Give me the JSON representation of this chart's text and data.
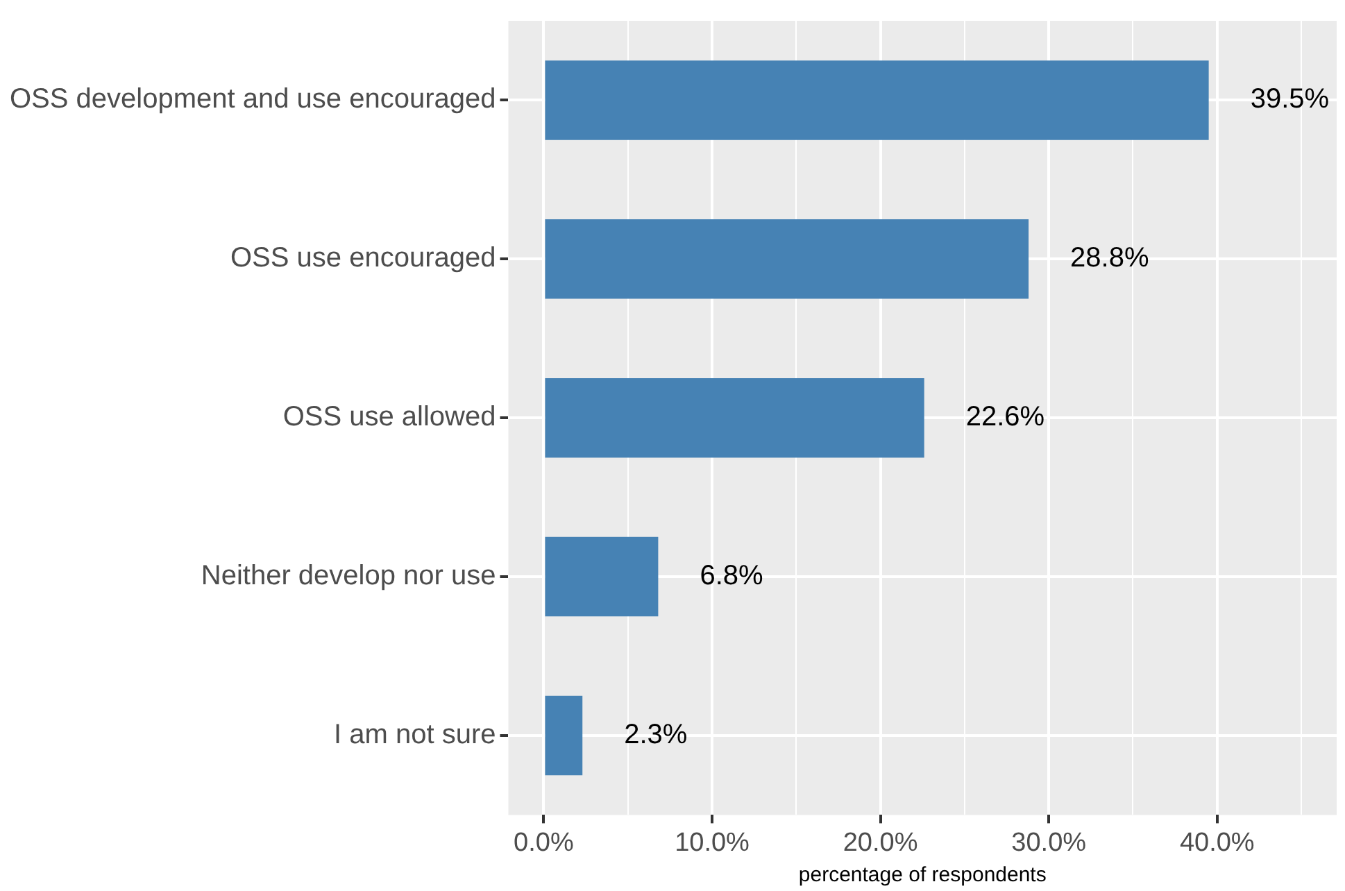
{
  "chart_data": {
    "type": "bar",
    "orientation": "horizontal",
    "xlabel": "percentage of respondents",
    "categories": [
      "OSS development and use encouraged",
      "OSS use encouraged",
      "OSS use allowed",
      "Neither develop nor use",
      "I am not sure"
    ],
    "values": [
      39.5,
      28.8,
      22.6,
      6.8,
      2.3
    ],
    "value_labels": [
      "39.5%",
      "28.8%",
      "22.6%",
      "6.8%",
      "2.3%"
    ],
    "color": "#4682b4",
    "xlim": [
      -2.1,
      47.1
    ],
    "xticks": [
      {
        "value": 0,
        "label": "0.0%"
      },
      {
        "value": 5,
        "label": null
      },
      {
        "value": 10,
        "label": "10.0%"
      },
      {
        "value": 15,
        "label": null
      },
      {
        "value": 20,
        "label": "20.0%"
      },
      {
        "value": 25,
        "label": null
      },
      {
        "value": 30,
        "label": "30.0%"
      },
      {
        "value": 35,
        "label": null
      },
      {
        "value": 40,
        "label": "40.0%"
      },
      {
        "value": 45,
        "label": null
      }
    ],
    "grid": true,
    "legend": false
  }
}
